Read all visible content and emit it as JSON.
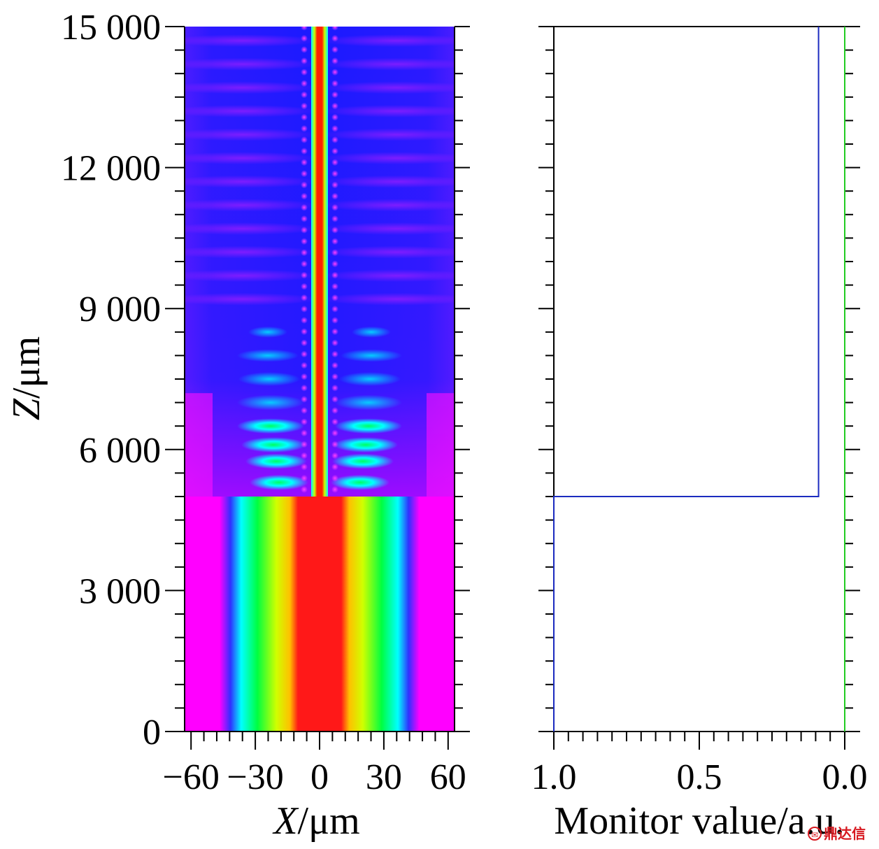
{
  "chart_data": [
    {
      "type": "heatmap",
      "title": "",
      "xlabel_var": "X",
      "xlabel_unit": "/μm",
      "ylabel_var": "Z",
      "ylabel_unit": "/μm",
      "xlim": [
        -63,
        63
      ],
      "ylim": [
        0,
        15000
      ],
      "x_ticks": [
        -60,
        -30,
        0,
        30,
        60
      ],
      "x_tick_labels": [
        "−60",
        "−30",
        "0",
        "30",
        "60"
      ],
      "y_ticks": [
        0,
        3000,
        6000,
        9000,
        12000,
        15000
      ],
      "y_tick_labels": [
        "0",
        "3 000",
        "6 000",
        "9 000",
        "12 000",
        "15 000"
      ],
      "colormap": [
        "#0000ff",
        "#00ffff",
        "#00ff00",
        "#ffff00",
        "#ff0000"
      ],
      "background_color": "#ff00ff",
      "regions": [
        {
          "z_range": [
            0,
            5000
          ],
          "description": "wide input beam, width about ±45 μm, peak at X=0"
        },
        {
          "z_range": [
            5000,
            15000
          ],
          "description": "narrow guided core about ±5 μm with beating side lobes"
        }
      ]
    },
    {
      "type": "line",
      "title": "",
      "xlabel": "Monitor value/a.u.",
      "x_reversed": true,
      "xlim": [
        1.0,
        0.0
      ],
      "ylim": [
        0,
        15000
      ],
      "x_ticks": [
        1.0,
        0.5,
        0.0
      ],
      "x_tick_labels": [
        "1.0",
        "0.5",
        "0.0"
      ],
      "series": [
        {
          "color": "#1b2bbf",
          "x": [
            1.0,
            1.0,
            0.09,
            0.09
          ],
          "y": [
            0,
            5000,
            5000,
            15000
          ]
        },
        {
          "color": "#22cc22",
          "x": [
            0.0,
            0.0
          ],
          "y": [
            0,
            15000
          ]
        }
      ]
    }
  ],
  "watermark": "鼎达信"
}
